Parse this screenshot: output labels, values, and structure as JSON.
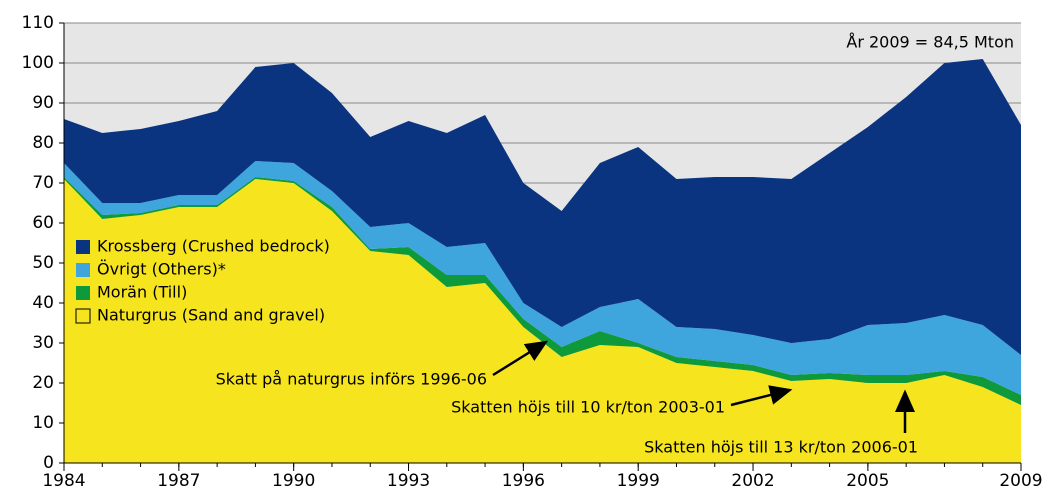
{
  "chart_data": {
    "type": "stacked_area",
    "x": [
      1984,
      1985,
      1986,
      1987,
      1988,
      1989,
      1990,
      1991,
      1992,
      1993,
      1994,
      1995,
      1996,
      1997,
      1998,
      1999,
      2000,
      2001,
      2002,
      2003,
      2004,
      2005,
      2006,
      2007,
      2008,
      2009
    ],
    "series": [
      {
        "name": "Naturgrus (Sand and gravel)",
        "color": "#f6e51e",
        "values": [
          71,
          61,
          62,
          64,
          64,
          71,
          70,
          63,
          53,
          52,
          44,
          45,
          34,
          26.5,
          29.5,
          29,
          25,
          24,
          23,
          20.5,
          21,
          20,
          20,
          22,
          19,
          14.5
        ]
      },
      {
        "name": "Morän (Till)",
        "color": "#0e9a3a",
        "values": [
          0.5,
          1,
          0.5,
          0.5,
          0.5,
          0.5,
          0.5,
          1,
          0.5,
          2,
          3,
          2,
          2,
          2.5,
          3.5,
          1,
          1.5,
          1.5,
          1.5,
          1.5,
          1.5,
          2,
          2,
          1,
          2.5,
          2.5
        ]
      },
      {
        "name": "Övrigt (Others)*",
        "color": "#3ea6dd",
        "values": [
          3.5,
          3,
          2.5,
          2.5,
          2.5,
          4,
          4.5,
          4,
          5.5,
          6,
          7,
          8,
          4,
          5,
          6,
          11,
          7.5,
          8,
          7.5,
          8,
          8.5,
          12.5,
          13,
          14,
          13,
          10
        ]
      },
      {
        "name": "Krossberg (Crushed bedrock)",
        "color": "#0a3480",
        "values": [
          11,
          17.5,
          18.5,
          18.5,
          21,
          23.5,
          25,
          24.5,
          22.5,
          25.5,
          28.5,
          32,
          30,
          29,
          36,
          38,
          37,
          38,
          39.5,
          41,
          46.5,
          49.5,
          56.5,
          63,
          66.5,
          57.5
        ]
      }
    ],
    "xlim": [
      1984,
      2009
    ],
    "xticks": [
      1984,
      1987,
      1990,
      1993,
      1996,
      1999,
      2002,
      2005,
      2009
    ],
    "ylim": [
      0,
      110
    ],
    "yticks": [
      0,
      10,
      20,
      30,
      40,
      50,
      60,
      70,
      80,
      90,
      100,
      110
    ],
    "grid": true,
    "legend": "center-left",
    "annotations": [
      "År 2009 = 84,5 Mton",
      "Skatt på naturgrus införs 1996-06",
      "Skatten höjs till 10 kr/ton 2003-01",
      "Skatten höjs till 13 kr/ton 2006-01"
    ]
  }
}
